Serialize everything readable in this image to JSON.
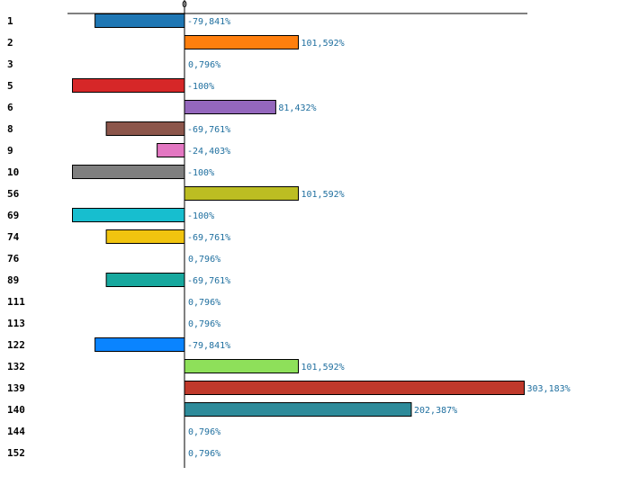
{
  "chart_data": {
    "type": "bar",
    "orientation": "horizontal",
    "title": "",
    "xlabel": "",
    "ylabel": "",
    "zero_tick_label": "0",
    "xlim": [
      -105,
      310
    ],
    "categories": [
      "1",
      "2",
      "3",
      "5",
      "6",
      "8",
      "9",
      "10",
      "56",
      "69",
      "74",
      "76",
      "89",
      "111",
      "113",
      "122",
      "132",
      "139",
      "140",
      "144",
      "152"
    ],
    "values": [
      -79.841,
      101.592,
      0.796,
      -100,
      81.432,
      -69.761,
      -24.403,
      -100,
      101.592,
      -100,
      -69.761,
      0.796,
      -69.761,
      0.796,
      0.796,
      -79.841,
      101.592,
      303.183,
      202.387,
      0.796,
      0.796
    ],
    "value_labels": [
      "-79,841%",
      "101,592%",
      "0,796%",
      "-100%",
      "81,432%",
      "-69,761%",
      "-24,403%",
      "-100%",
      "101,592%",
      "-100%",
      "-69,761%",
      "0,796%",
      "-69,761%",
      "0,796%",
      "0,796%",
      "-79,841%",
      "101,592%",
      "303,183%",
      "202,387%",
      "0,796%",
      "0,796%"
    ],
    "colors": [
      "#1f77b4",
      "#ff7f0e",
      "#2ca02c",
      "#d62728",
      "#9467bd",
      "#8c564b",
      "#e377c2",
      "#7f7f7f",
      "#bcbd22",
      "#17becf",
      "#f1c40f",
      "#3cb44b",
      "#17a89e",
      "#8e44ad",
      "#ff9896",
      "#0a84ff",
      "#8ee05a",
      "#c0392b",
      "#2e8b9a",
      "#aaaaaa",
      "#999999"
    ],
    "grid": false,
    "legend": "none"
  }
}
